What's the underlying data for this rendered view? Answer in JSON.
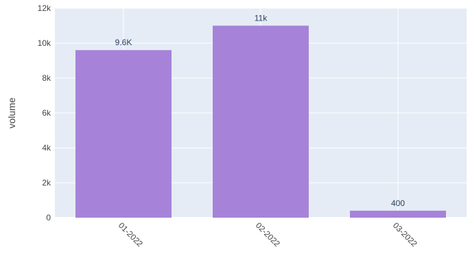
{
  "chart_data": {
    "type": "bar",
    "title": "",
    "xlabel": "",
    "ylabel": "volume",
    "categories": [
      "01-2022",
      "02-2022",
      "03-2022"
    ],
    "values": [
      9600,
      11000,
      400
    ],
    "value_labels": [
      "9.6K",
      "11k",
      "400"
    ],
    "ylim": [
      0,
      12000
    ],
    "yticks": [
      0,
      2000,
      4000,
      6000,
      8000,
      10000,
      12000
    ],
    "ytick_labels": [
      "0",
      "2k",
      "4k",
      "6k",
      "8k",
      "10k",
      "12k"
    ],
    "grid": true,
    "legend": "none",
    "colors": {
      "bar": "#a683d8",
      "plot_background": "#e5ecf6",
      "grid": "#ffffff"
    }
  }
}
